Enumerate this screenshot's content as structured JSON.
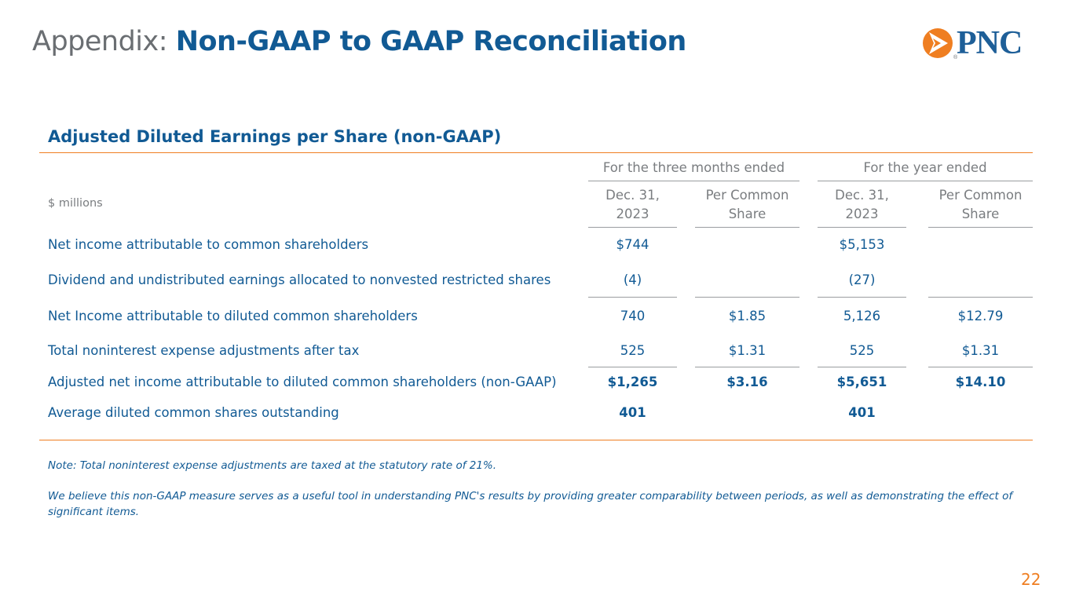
{
  "header": {
    "title_prefix": "Appendix:",
    "title_main": "Non-GAAP to GAAP Reconciliation",
    "logo_text": "PNC",
    "logo_registered": "®",
    "brand_colors": {
      "blue": "#115a94",
      "orange": "#ef7e21",
      "gray": "#6a6e72"
    }
  },
  "section": {
    "title": "Adjusted Diluted Earnings per Share (non-GAAP)"
  },
  "table": {
    "units_label": "$ millions",
    "group_headers": [
      "For the three months ended",
      "For the year ended"
    ],
    "column_headers": [
      {
        "line1": "Dec. 31,",
        "line2": "2023"
      },
      {
        "line1": "Per Common",
        "line2": "Share"
      },
      {
        "line1": "Dec. 31,",
        "line2": "2023"
      },
      {
        "line1": "Per Common",
        "line2": "Share"
      }
    ],
    "rows": [
      {
        "label": "Net income attributable to common shareholders",
        "q_value": "$744",
        "q_per_share": "",
        "y_value": "$5,153",
        "y_per_share": ""
      },
      {
        "label": "Dividend and undistributed earnings allocated to nonvested restricted shares",
        "q_value": "(4)",
        "q_per_share": "",
        "y_value": "(27)",
        "y_per_share": ""
      },
      {
        "label": "Net Income attributable to diluted common shareholders",
        "q_value": "740",
        "q_per_share": "$1.85",
        "y_value": "5,126",
        "y_per_share": "$12.79"
      },
      {
        "label": "Total noninterest expense adjustments after tax",
        "q_value": "525",
        "q_per_share": "$1.31",
        "y_value": "525",
        "y_per_share": "$1.31"
      },
      {
        "label": "Adjusted net income attributable to diluted common shareholders (non-GAAP)",
        "q_value": "$1,265",
        "q_per_share": "$3.16",
        "y_value": "$5,651",
        "y_per_share": "$14.10"
      },
      {
        "label": "Average diluted common shares outstanding",
        "q_value": "401",
        "q_per_share": "",
        "y_value": "401",
        "y_per_share": ""
      }
    ]
  },
  "notes": {
    "note1": "Note: Total noninterest expense adjustments are taxed at the statutory rate of 21%.",
    "note2": "We believe this non-GAAP measure serves as a useful tool in understanding PNC's results by providing greater comparability between periods, as well as demonstrating the effect of significant items."
  },
  "footer": {
    "page_number": "22"
  }
}
